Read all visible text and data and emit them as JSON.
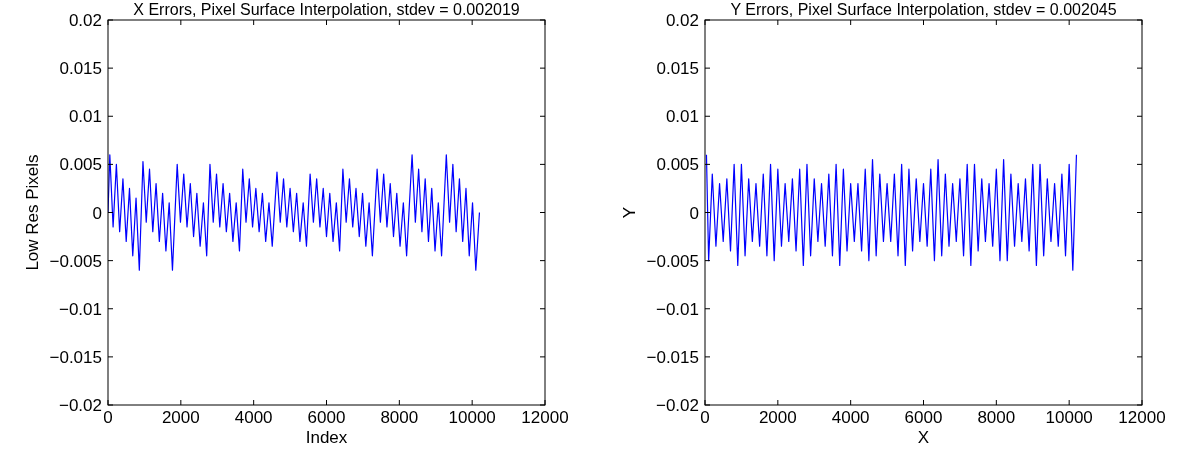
{
  "chart_data": [
    {
      "type": "line",
      "title": "X Errors, Pixel Surface Interpolation, stdev = 0.002019",
      "xlabel": "Index",
      "ylabel": "Low Res Pixels",
      "xlim": [
        0,
        12000
      ],
      "xticks": [
        0,
        2000,
        4000,
        6000,
        8000,
        10000,
        12000
      ],
      "ylim": [
        -0.02,
        0.02
      ],
      "yticks": [
        -0.02,
        -0.015,
        -0.01,
        -0.005,
        0,
        0.005,
        0.01,
        0.015,
        0.02
      ],
      "grid": false,
      "series": [
        {
          "color": "#0000ff",
          "x": [
            0,
            50,
            140,
            230,
            320,
            410,
            500,
            590,
            680,
            770,
            860,
            960,
            1050,
            1140,
            1230,
            1320,
            1410,
            1500,
            1590,
            1680,
            1770,
            1900,
            1990,
            2080,
            2170,
            2260,
            2350,
            2440,
            2530,
            2620,
            2710,
            2800,
            2890,
            2980,
            3070,
            3160,
            3250,
            3340,
            3430,
            3520,
            3610,
            3700,
            3790,
            3880,
            3970,
            4060,
            4150,
            4240,
            4330,
            4420,
            4510,
            4640,
            4730,
            4820,
            4910,
            5000,
            5090,
            5180,
            5270,
            5360,
            5450,
            5550,
            5640,
            5730,
            5820,
            5910,
            6000,
            6090,
            6180,
            6270,
            6360,
            6450,
            6540,
            6630,
            6720,
            6810,
            6900,
            6990,
            7080,
            7170,
            7260,
            7390,
            7480,
            7570,
            7660,
            7750,
            7840,
            7930,
            8020,
            8110,
            8200,
            8350,
            8440,
            8530,
            8620,
            8710,
            8800,
            8890,
            8980,
            9070,
            9160,
            9290,
            9380,
            9470,
            9560,
            9650,
            9740,
            9830,
            9920,
            10010,
            10100,
            10200
          ],
          "values": [
            0,
            0.006,
            -0.0015,
            0.005,
            -0.002,
            0.0035,
            -0.003,
            0.0025,
            -0.0045,
            0.0015,
            -0.006,
            0.0053,
            -0.001,
            0.0045,
            -0.002,
            0.003,
            -0.003,
            0.002,
            -0.004,
            0.001,
            -0.006,
            0.005,
            -0.001,
            0.004,
            -0.0015,
            0.003,
            -0.0025,
            0.002,
            -0.0035,
            0.001,
            -0.0045,
            0.005,
            -0.001,
            0.004,
            -0.0015,
            0.003,
            -0.002,
            0.002,
            -0.003,
            0.001,
            -0.004,
            0.0045,
            -0.001,
            0.0035,
            -0.0015,
            0.0025,
            -0.002,
            0.002,
            -0.003,
            0.001,
            -0.0035,
            0.0042,
            -0.001,
            0.0035,
            -0.0015,
            0.0025,
            -0.002,
            0.002,
            -0.003,
            0.001,
            -0.0035,
            0.004,
            -0.001,
            0.0035,
            -0.0015,
            0.0025,
            -0.0025,
            0.002,
            -0.003,
            0.001,
            -0.004,
            0.0045,
            -0.001,
            0.0035,
            -0.0015,
            0.0025,
            -0.0025,
            0.002,
            -0.0035,
            0.001,
            -0.0045,
            0.0045,
            -0.001,
            0.004,
            -0.0015,
            0.003,
            -0.0025,
            0.002,
            -0.0035,
            0.001,
            -0.0045,
            0.006,
            -0.001,
            0.0045,
            -0.002,
            0.0035,
            -0.003,
            0.0025,
            -0.004,
            0.001,
            -0.0045,
            0.006,
            -0.001,
            0.005,
            -0.002,
            0.0035,
            -0.003,
            0.0025,
            -0.0045,
            0.001,
            -0.006,
            0
          ]
        }
      ]
    },
    {
      "type": "line",
      "title": "Y Errors, Pixel Surface Interpolation, stdev = 0.002045",
      "xlabel": "X",
      "ylabel": "Y",
      "xlim": [
        0,
        12000
      ],
      "xticks": [
        0,
        2000,
        4000,
        6000,
        8000,
        10000,
        12000
      ],
      "ylim": [
        -0.02,
        0.02
      ],
      "yticks": [
        -0.02,
        -0.015,
        -0.01,
        -0.005,
        0,
        0.005,
        0.01,
        0.015,
        0.02
      ],
      "grid": false,
      "series": [
        {
          "color": "#0000ff",
          "x": [
            40,
            100,
            200,
            300,
            400,
            500,
            600,
            700,
            800,
            900,
            1000,
            1100,
            1200,
            1300,
            1400,
            1500,
            1600,
            1700,
            1800,
            1900,
            2000,
            2100,
            2200,
            2300,
            2400,
            2500,
            2600,
            2700,
            2800,
            2900,
            3000,
            3100,
            3200,
            3300,
            3400,
            3500,
            3600,
            3700,
            3800,
            3900,
            4000,
            4100,
            4200,
            4300,
            4400,
            4500,
            4600,
            4700,
            4800,
            4900,
            5000,
            5100,
            5200,
            5300,
            5400,
            5500,
            5600,
            5700,
            5800,
            5900,
            6000,
            6100,
            6200,
            6300,
            6400,
            6500,
            6600,
            6700,
            6800,
            6900,
            7000,
            7100,
            7200,
            7300,
            7400,
            7500,
            7600,
            7700,
            7800,
            7900,
            8000,
            8100,
            8200,
            8300,
            8400,
            8500,
            8600,
            8700,
            8800,
            8900,
            9000,
            9100,
            9200,
            9300,
            9400,
            9500,
            9600,
            9700,
            9800,
            9900,
            10000,
            10100,
            10200
          ],
          "values": [
            0.006,
            -0.005,
            0.004,
            -0.0035,
            0.003,
            -0.003,
            0.0035,
            -0.004,
            0.005,
            -0.0055,
            0.005,
            -0.0045,
            0.0035,
            -0.003,
            0.003,
            -0.0035,
            0.004,
            -0.0045,
            0.005,
            -0.005,
            0.0045,
            -0.0035,
            0.003,
            -0.003,
            0.0035,
            -0.004,
            0.0045,
            -0.0055,
            0.005,
            -0.0045,
            0.0035,
            -0.003,
            0.003,
            -0.0035,
            0.004,
            -0.0045,
            0.005,
            -0.0055,
            0.0045,
            -0.004,
            0.003,
            -0.003,
            0.003,
            -0.004,
            0.0045,
            -0.005,
            0.0055,
            -0.0045,
            0.004,
            -0.003,
            0.003,
            -0.003,
            0.004,
            -0.0045,
            0.005,
            -0.0055,
            0.0045,
            -0.004,
            0.0035,
            -0.003,
            0.003,
            -0.0035,
            0.0045,
            -0.005,
            0.0055,
            -0.0045,
            0.004,
            -0.0035,
            0.003,
            -0.003,
            0.0035,
            -0.0045,
            0.005,
            -0.0055,
            0.005,
            -0.004,
            0.0035,
            -0.003,
            0.003,
            -0.0035,
            0.0045,
            -0.005,
            0.0055,
            -0.005,
            0.004,
            -0.0035,
            0.003,
            -0.003,
            0.0035,
            -0.004,
            0.005,
            -0.0055,
            0.005,
            -0.0045,
            0.0035,
            -0.003,
            0.003,
            -0.0035,
            0.004,
            -0.0045,
            0.005,
            -0.006,
            0.006
          ]
        }
      ]
    }
  ]
}
